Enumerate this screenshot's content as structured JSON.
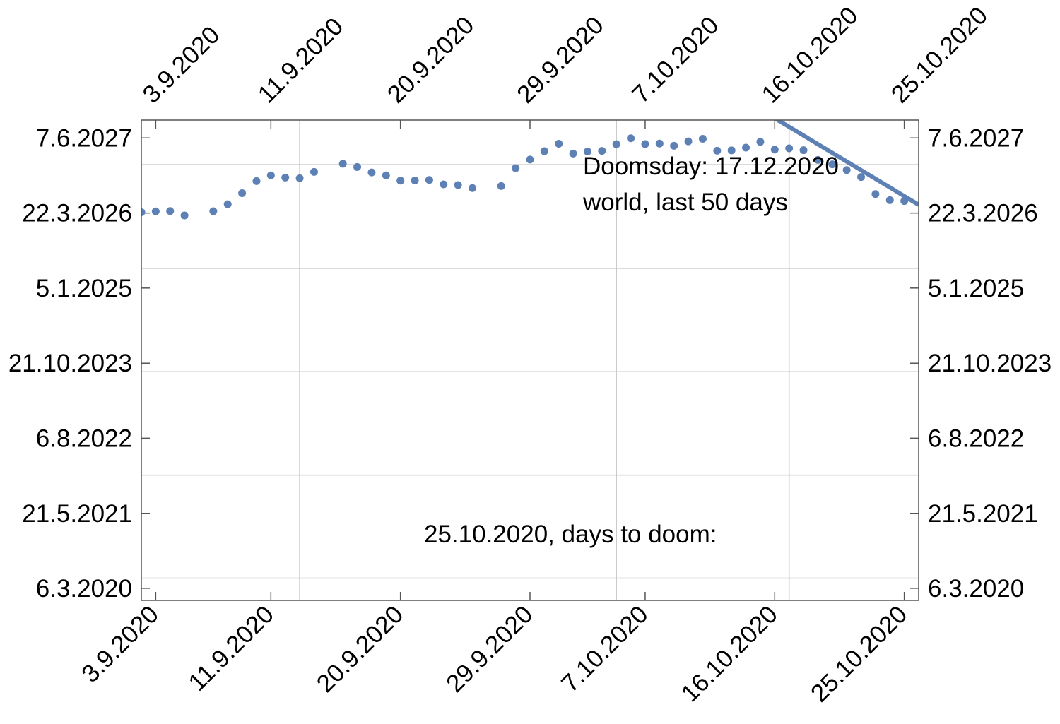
{
  "chart_data": {
    "type": "scatter",
    "title": "",
    "xlabel": "",
    "ylabel": "",
    "x_tick_labels": [
      "3.9.2020",
      "11.9.2020",
      "20.9.2020",
      "29.9.2020",
      "7.10.2020",
      "16.10.2020",
      "25.10.2020"
    ],
    "y_tick_labels": [
      "6.3.2020",
      "21.5.2021",
      "6.8.2022",
      "21.10.2023",
      "5.1.2025",
      "22.3.2026",
      "7.6.2027"
    ],
    "xlim": [
      "2020-09-02",
      "2020-10-26"
    ],
    "ylim": [
      "2019-12-26",
      "2027-09-20"
    ],
    "grid": {
      "x": [
        "2020-09-13",
        "2020-10-05",
        "2020-10-17"
      ],
      "y": [
        "2020-05-05",
        "2022-01-01",
        "2023-09-01",
        "2025-05-01",
        "2027-01-01"
      ]
    },
    "series": [
      {
        "kind": "points",
        "color": "#5e81b5",
        "x": [
          "2020-09-02",
          "2020-09-03",
          "2020-09-04",
          "2020-09-05",
          "2020-09-07",
          "2020-09-08",
          "2020-09-09",
          "2020-09-10",
          "2020-09-11",
          "2020-09-12",
          "2020-09-13",
          "2020-09-14",
          "2020-09-16",
          "2020-09-17",
          "2020-09-18",
          "2020-09-19",
          "2020-09-20",
          "2020-09-21",
          "2020-09-22",
          "2020-09-23",
          "2020-09-24",
          "2020-09-25",
          "2020-09-27",
          "2020-09-28",
          "2020-09-29",
          "2020-09-30",
          "2020-10-01",
          "2020-10-02",
          "2020-10-03",
          "2020-10-04",
          "2020-10-05",
          "2020-10-06",
          "2020-10-07",
          "2020-10-08",
          "2020-10-09",
          "2020-10-10",
          "2020-10-11",
          "2020-10-12",
          "2020-10-13",
          "2020-10-14",
          "2020-10-15",
          "2020-10-16",
          "2020-10-17",
          "2020-10-18",
          "2020-10-19",
          "2020-10-20",
          "2020-10-21",
          "2020-10-22",
          "2020-10-23",
          "2020-10-24",
          "2020-10-25"
        ],
        "y": [
          "2026-03-27",
          "2026-04-01",
          "2026-04-03",
          "2026-03-08",
          "2026-04-02",
          "2026-05-13",
          "2026-07-17",
          "2026-09-26",
          "2026-10-30",
          "2026-10-17",
          "2026-10-13",
          "2026-11-19",
          "2027-01-06",
          "2026-12-18",
          "2026-11-16",
          "2026-10-30",
          "2026-09-29",
          "2026-09-30",
          "2026-10-03",
          "2026-09-07",
          "2026-09-03",
          "2026-08-16",
          "2026-08-28",
          "2026-12-11",
          "2027-01-31",
          "2027-03-21",
          "2027-05-04",
          "2027-03-07",
          "2027-03-19",
          "2027-03-23",
          "2027-05-01",
          "2027-06-05",
          "2027-05-02",
          "2027-05-05",
          "2027-04-22",
          "2027-05-18",
          "2027-06-02",
          "2027-03-24",
          "2027-03-26",
          "2027-04-11",
          "2027-05-15",
          "2027-03-30",
          "2027-04-07",
          "2027-03-27",
          "2027-01-29",
          "2027-01-03",
          "2026-11-30",
          "2026-10-20",
          "2026-07-12",
          "2026-06-06",
          "2026-06-01"
        ]
      },
      {
        "kind": "line",
        "color": "#5e81b5",
        "x": [
          "2020-10-16",
          "2020-10-26"
        ],
        "y": [
          "2027-10-01",
          "2026-05-10"
        ]
      }
    ],
    "annotations": [
      "Doomsday: 17.12.2020",
      "world, last 50 days",
      "25.10.2020, days to doom:"
    ]
  }
}
